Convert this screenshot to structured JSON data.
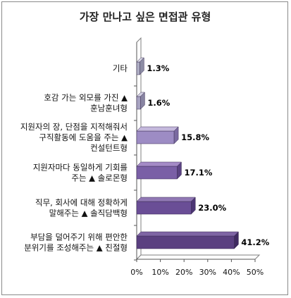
{
  "chart_data": {
    "type": "bar",
    "orientation": "horizontal",
    "title": "가장 만나고 싶은 면접관 유형",
    "categories": [
      [
        "기타"
      ],
      [
        "호감 가는 외모를 가진 ▲",
        "훈남훈녀형"
      ],
      [
        "지원자의 장, 단점을 지적해줘서",
        "구직활동에 도움을 주는 ▲",
        "컨설턴트형"
      ],
      [
        "지원자마다 동일하게 기회를",
        "주는 ▲ 솔로몬형"
      ],
      [
        "직무, 회사에 대해 정확하게",
        "말해주는 ▲ 솔직담백형"
      ],
      [
        "부담을 덜어주기 위해 편안한",
        "분위기를 조성해주는 ▲ 친절형"
      ]
    ],
    "values": [
      1.3,
      1.6,
      15.8,
      17.1,
      23.0,
      41.2
    ],
    "value_labels": [
      "1.3%",
      "1.6%",
      "15.8%",
      "17.1%",
      "23.0%",
      "41.2%"
    ],
    "xlim": [
      0,
      50
    ],
    "x_ticks": [
      "0%",
      "10%",
      "20%",
      "30%",
      "40%",
      "50%"
    ],
    "grid": false,
    "legend": "none",
    "colors": {
      "front": [
        "#aeaec4",
        "#a8a4c2",
        "#9d8cc4",
        "#7a5fa6",
        "#6a4e96",
        "#5a3f80"
      ],
      "top": [
        "#d6d6e4",
        "#d2d0e2",
        "#c4b8dc",
        "#a48ac6",
        "#9078b4",
        "#7e64a4"
      ],
      "side": [
        "#8c8ca4",
        "#8884a2",
        "#7a6aa0",
        "#5a4282",
        "#4c3574",
        "#3f2a60"
      ]
    }
  }
}
